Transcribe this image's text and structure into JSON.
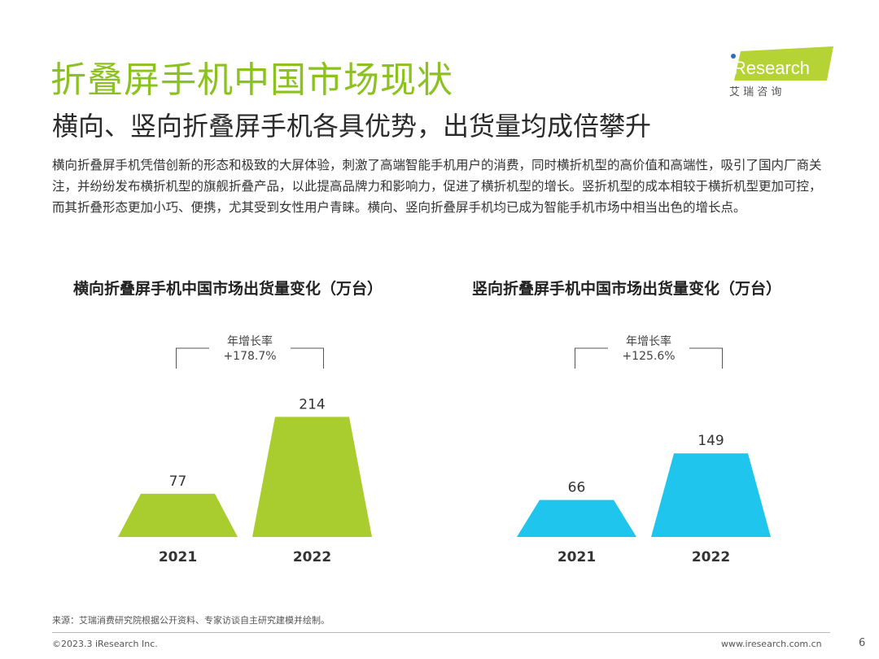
{
  "title": "折叠屏手机中国市场现状",
  "subtitle": "横向、竖向折叠屏手机各具优势，出货量均成倍攀升",
  "body": "横向折叠屏手机凭借创新的形态和极致的大屏体验，刺激了高端智能手机用户的消费，同时横折机型的高价值和高端性，吸引了国内厂商关注，并纷纷发布横折机型的旗舰折叠产品，以此提高品牌力和影响力，促进了横折机型的增长。竖折机型的成本相较于横折机型更加可控，而其折叠形态更加小巧、便携，尤其受到女性用户青睐。横向、竖向折叠屏手机均已成为智能手机市场中相当出色的增长点。",
  "logo": {
    "brand": "iResearch",
    "sub": "艾 瑞 咨 询"
  },
  "chart_data": [
    {
      "type": "bar",
      "title": "横向折叠屏手机中国市场出货量变化（万台）",
      "categories": [
        "2021",
        "2022"
      ],
      "values": [
        77,
        214
      ],
      "color": "#a9cd2f",
      "annotation": {
        "label": "年增长率",
        "value": "+178.7%"
      }
    },
    {
      "type": "bar",
      "title": "竖向折叠屏手机中国市场出货量变化（万台）",
      "categories": [
        "2021",
        "2022"
      ],
      "values": [
        66,
        149
      ],
      "color": "#20c5ee",
      "annotation": {
        "label": "年增长率",
        "value": "+125.6%"
      }
    }
  ],
  "footer": {
    "source": "来源：艾瑞消费研究院根据公开资料、专家访谈自主研究建模并绘制。",
    "copyright": "©2023.3 iResearch Inc.",
    "site": "www.iresearch.com.cn",
    "page": "6"
  }
}
